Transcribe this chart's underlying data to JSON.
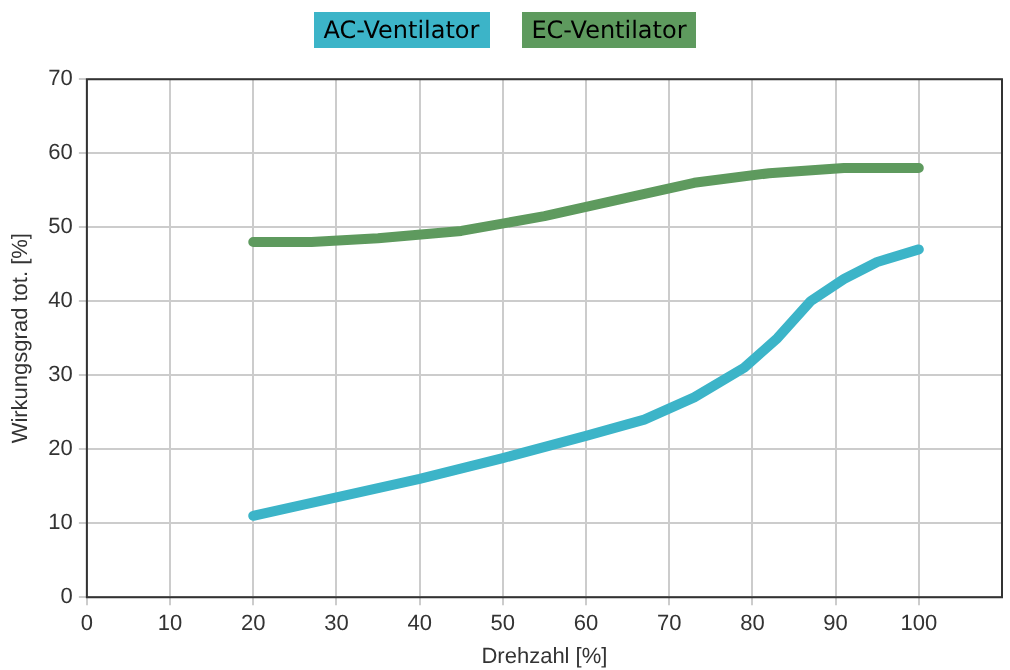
{
  "chart_data": {
    "type": "line",
    "xlabel": "Drehzahl [%]",
    "ylabel": "Wirkungsgrad tot. [%]",
    "xlim": [
      0,
      110
    ],
    "xticks": [
      0,
      10,
      20,
      30,
      40,
      50,
      60,
      70,
      80,
      90,
      100
    ],
    "ylim": [
      0,
      70
    ],
    "yticks": [
      0,
      10,
      20,
      30,
      40,
      50,
      60,
      70
    ],
    "grid": true,
    "legend": "top",
    "marker": "none",
    "series": [
      {
        "name": "AC-Ventilator",
        "color": "#3cb4c8",
        "x": [
          20,
          30,
          40,
          50,
          60,
          67,
          73,
          79,
          83,
          87,
          91,
          95,
          100
        ],
        "values": [
          11,
          13.5,
          16,
          18.8,
          21.8,
          24,
          27,
          31,
          35,
          40,
          43,
          45.3,
          47
        ]
      },
      {
        "name": "EC-Ventilator",
        "color": "#5e9a5e",
        "x": [
          20,
          27,
          35,
          45,
          55,
          65,
          73,
          82,
          91,
          100
        ],
        "values": [
          48,
          48,
          48.5,
          49.5,
          51.5,
          54,
          56,
          57.3,
          58,
          58
        ]
      }
    ]
  }
}
